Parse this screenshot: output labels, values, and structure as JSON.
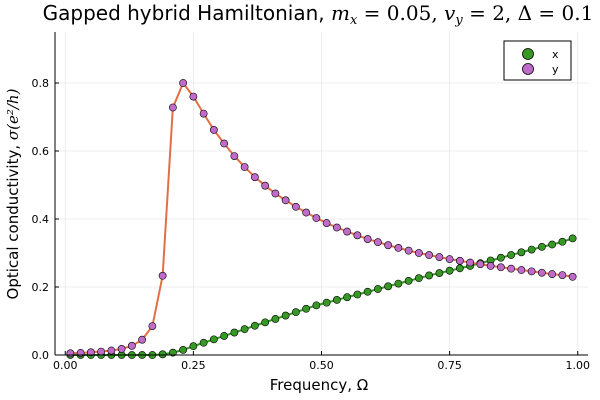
{
  "chart_data": {
    "type": "scatter",
    "title": "Gapped hybrid Hamiltonian, m_x = 0.05, v_y = 2, Δ = 0.1",
    "title_plain": "Gapped hybrid Hamiltonian, ",
    "title_math": "m",
    "title_math_sub": "x",
    "title_math_rest": " = 0.05, ",
    "title_math2": "v",
    "title_math2_sub": "y",
    "title_math2_rest": " = 2, Δ = 0.1",
    "xlabel": "Frequency, Ω",
    "ylabel": "Optical conductivity, ",
    "ylabel_math": "σ(e²/h)",
    "xlim": [
      -0.02,
      1.02
    ],
    "ylim": [
      0,
      0.95
    ],
    "xticks": [
      0.0,
      0.25,
      0.5,
      0.75,
      1.0
    ],
    "xtick_labels": [
      "0.00",
      "0.25",
      "0.50",
      "0.75",
      "1.00"
    ],
    "yticks": [
      0.0,
      0.2,
      0.4,
      0.6,
      0.8
    ],
    "ytick_labels": [
      "0.0",
      "0.2",
      "0.4",
      "0.6",
      "0.8"
    ],
    "grid": true,
    "legend_position": "top-right",
    "series": [
      {
        "name": "x",
        "color": "#389826",
        "line_color": "#389826",
        "x": [
          0.01,
          0.03,
          0.05,
          0.07,
          0.09,
          0.11,
          0.13,
          0.15,
          0.17,
          0.19,
          0.21,
          0.23,
          0.25,
          0.27,
          0.29,
          0.31,
          0.33,
          0.35,
          0.37,
          0.39,
          0.41,
          0.43,
          0.45,
          0.47,
          0.49,
          0.51,
          0.53,
          0.55,
          0.57,
          0.59,
          0.61,
          0.63,
          0.65,
          0.67,
          0.69,
          0.71,
          0.73,
          0.75,
          0.77,
          0.79,
          0.81,
          0.83,
          0.85,
          0.87,
          0.89,
          0.91,
          0.93,
          0.95,
          0.97,
          0.99
        ],
        "y": [
          0,
          0,
          0,
          0,
          0,
          0,
          0,
          0,
          0,
          0.002,
          0.007,
          0.015,
          0.026,
          0.036,
          0.046,
          0.056,
          0.066,
          0.076,
          0.086,
          0.096,
          0.106,
          0.116,
          0.126,
          0.136,
          0.146,
          0.154,
          0.162,
          0.17,
          0.178,
          0.186,
          0.194,
          0.202,
          0.21,
          0.218,
          0.226,
          0.234,
          0.241,
          0.248,
          0.255,
          0.262,
          0.27,
          0.278,
          0.286,
          0.294,
          0.302,
          0.31,
          0.318,
          0.325,
          0.333,
          0.343
        ]
      },
      {
        "name": "y",
        "color": "#c06bc9",
        "line_color": "#e26f46",
        "x": [
          0.01,
          0.03,
          0.05,
          0.07,
          0.09,
          0.11,
          0.13,
          0.15,
          0.17,
          0.19,
          0.21,
          0.23,
          0.25,
          0.27,
          0.29,
          0.31,
          0.33,
          0.35,
          0.37,
          0.39,
          0.41,
          0.43,
          0.45,
          0.47,
          0.49,
          0.51,
          0.53,
          0.55,
          0.57,
          0.59,
          0.61,
          0.63,
          0.65,
          0.67,
          0.69,
          0.71,
          0.73,
          0.75,
          0.77,
          0.79,
          0.81,
          0.83,
          0.85,
          0.87,
          0.89,
          0.91,
          0.93,
          0.95,
          0.97,
          0.99
        ],
        "y": [
          0.005,
          0.006,
          0.008,
          0.01,
          0.013,
          0.018,
          0.027,
          0.045,
          0.085,
          0.233,
          0.728,
          0.8,
          0.76,
          0.71,
          0.662,
          0.622,
          0.585,
          0.553,
          0.523,
          0.498,
          0.475,
          0.455,
          0.436,
          0.419,
          0.403,
          0.388,
          0.375,
          0.363,
          0.352,
          0.341,
          0.332,
          0.323,
          0.315,
          0.307,
          0.3,
          0.294,
          0.288,
          0.282,
          0.277,
          0.272,
          0.267,
          0.262,
          0.258,
          0.254,
          0.25,
          0.246,
          0.242,
          0.238,
          0.235,
          0.23
        ]
      }
    ]
  }
}
